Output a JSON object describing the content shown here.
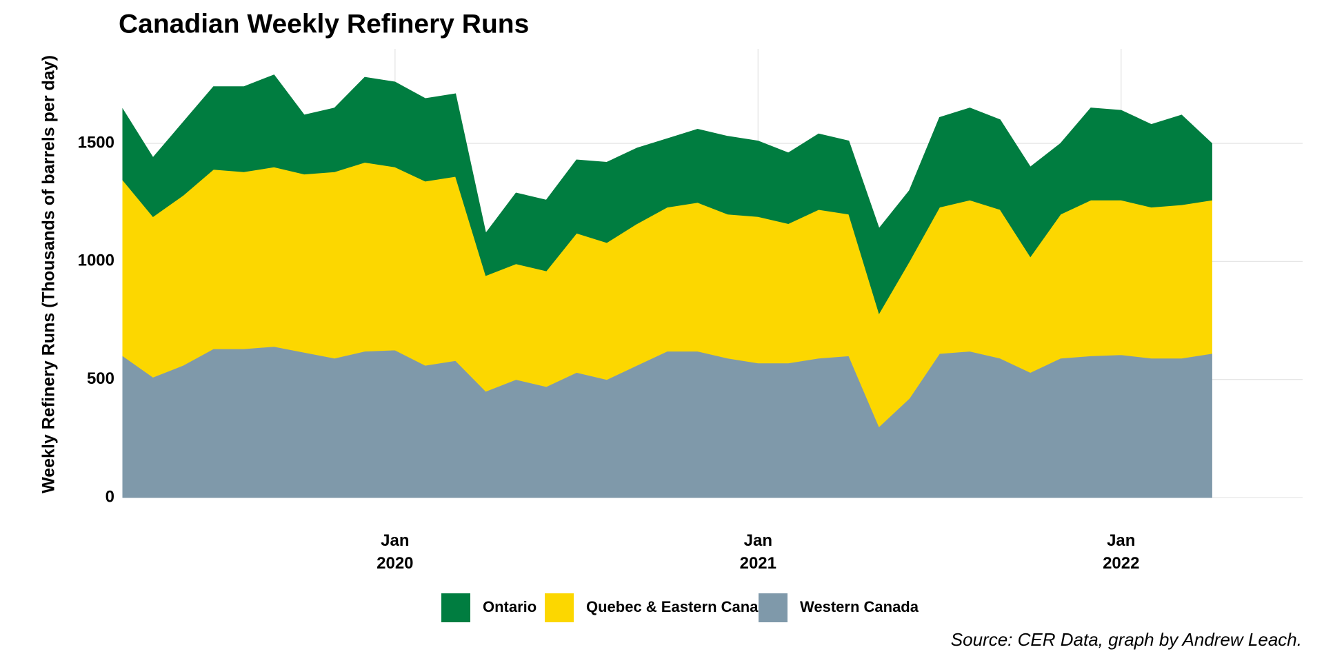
{
  "chart_data": {
    "type": "stacked-area",
    "title": "Canadian Weekly Refinery Runs",
    "y_label": "Weekly Refinery Runs (Thousands of barrels per day)",
    "source": "Source: CER Data, graph by Andrew Leach.",
    "x": [
      "2019-04",
      "2019-05",
      "2019-06",
      "2019-07",
      "2019-08",
      "2019-09",
      "2019-10",
      "2019-11",
      "2019-12",
      "2020-01",
      "2020-02",
      "2020-03",
      "2020-04",
      "2020-05",
      "2020-06",
      "2020-07",
      "2020-08",
      "2020-09",
      "2020-10",
      "2020-11",
      "2020-12",
      "2021-01",
      "2021-02",
      "2021-03",
      "2021-04",
      "2021-05",
      "2021-06",
      "2021-07",
      "2021-08",
      "2021-09",
      "2021-10",
      "2021-11",
      "2021-12",
      "2022-01",
      "2022-02",
      "2022-03",
      "2022-04"
    ],
    "series": [
      {
        "name": "Ontario",
        "color": "#007d40",
        "values": [
          300,
          250,
          310,
          350,
          360,
          390,
          250,
          270,
          360,
          360,
          350,
          350,
          180,
          300,
          300,
          310,
          340,
          320,
          290,
          310,
          330,
          320,
          300,
          320,
          310,
          360,
          300,
          380,
          390,
          380,
          380,
          300,
          390,
          380,
          350,
          380,
          240
        ]
      },
      {
        "name": "Quebec & Eastern Canada",
        "color": "#fcd700",
        "values": [
          745,
          680,
          720,
          760,
          750,
          760,
          755,
          790,
          800,
          775,
          780,
          780,
          490,
          490,
          490,
          590,
          580,
          600,
          610,
          630,
          610,
          620,
          590,
          630,
          600,
          480,
          580,
          620,
          640,
          630,
          490,
          610,
          660,
          655,
          640,
          650,
          650
        ]
      },
      {
        "name": "Western Canada",
        "color": "#7f99aa",
        "values": [
          600,
          510,
          560,
          630,
          630,
          640,
          615,
          590,
          620,
          625,
          560,
          580,
          450,
          500,
          470,
          530,
          500,
          560,
          620,
          620,
          590,
          570,
          570,
          590,
          600,
          300,
          420,
          610,
          620,
          590,
          530,
          590,
          600,
          605,
          590,
          590,
          610
        ]
      }
    ],
    "xlim": [
      "2019-04",
      "2022-07"
    ],
    "xticks": [
      {
        "value": "2020-01",
        "label": "Jan\n2020"
      },
      {
        "value": "2021-01",
        "label": "Jan\n2021"
      },
      {
        "value": "2022-01",
        "label": "Jan\n2022"
      }
    ],
    "ylim": [
      0,
      1900
    ],
    "yticks": [
      0,
      500,
      1000,
      1500
    ],
    "grid": true,
    "legend": "bottom"
  }
}
